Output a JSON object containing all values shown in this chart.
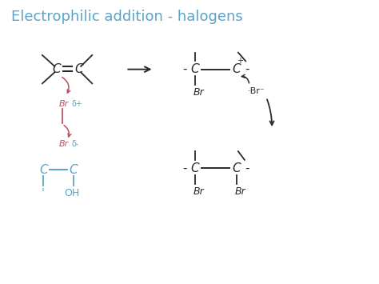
{
  "title": "Electrophilic addition - halogens",
  "title_color": "#5ba3c9",
  "title_fontsize": 13,
  "bg_color": "#ffffff",
  "black": "#2a2a2a",
  "red": "#c05060",
  "blue": "#5ba3c9",
  "xlim": [
    0,
    10
  ],
  "ylim": [
    0,
    7.5
  ]
}
